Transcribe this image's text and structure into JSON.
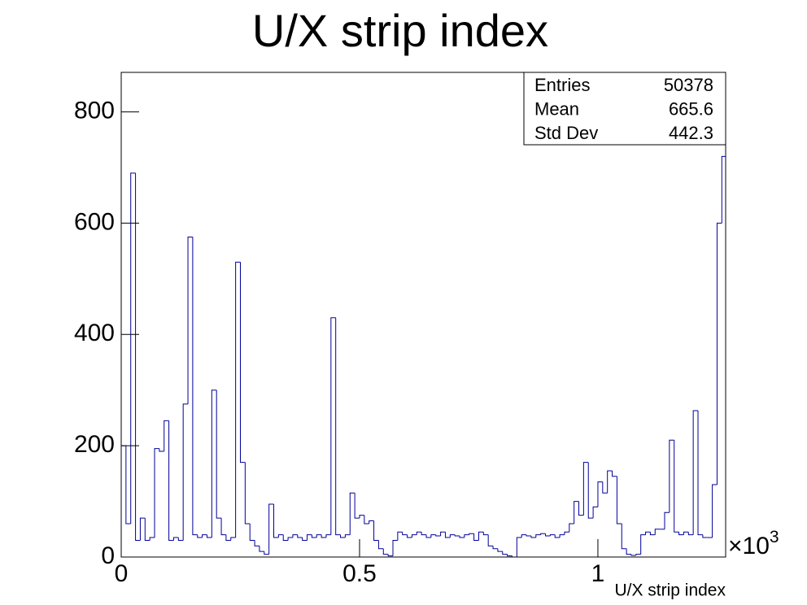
{
  "chart_data": {
    "type": "histogram",
    "title": "U/X strip index",
    "x_label": "U/X strip index",
    "x_multiplier": {
      "base": "×10",
      "exponent": "3"
    },
    "color": "#000099",
    "bins": [
      0,
      10,
      20,
      30,
      40,
      50,
      60,
      70,
      80,
      90,
      100,
      110,
      120,
      130,
      140,
      150,
      160,
      170,
      180,
      190,
      200,
      210,
      220,
      230,
      240,
      250,
      260,
      270,
      280,
      290,
      300,
      310,
      320,
      330,
      340,
      350,
      360,
      370,
      380,
      390,
      400,
      410,
      420,
      430,
      440,
      450,
      460,
      470,
      480,
      490,
      500,
      510,
      520,
      530,
      540,
      550,
      560,
      570,
      580,
      590,
      600,
      610,
      620,
      630,
      640,
      650,
      660,
      670,
      680,
      690,
      700,
      710,
      720,
      730,
      740,
      750,
      760,
      770,
      780,
      790,
      800,
      810,
      820,
      830,
      840,
      850,
      860,
      870,
      880,
      890,
      900,
      910,
      920,
      930,
      940,
      950,
      960,
      970,
      980,
      990,
      1000,
      1010,
      1020,
      1030,
      1040,
      1050,
      1060,
      1070,
      1080,
      1090,
      1100,
      1110,
      1120,
      1130,
      1140,
      1150,
      1160,
      1170,
      1180,
      1190,
      1200,
      1210,
      1220,
      1230,
      1240,
      1250,
      1260,
      1268
    ],
    "values": [
      200,
      60,
      690,
      30,
      70,
      30,
      35,
      195,
      190,
      245,
      30,
      35,
      30,
      275,
      575,
      40,
      35,
      40,
      35,
      300,
      70,
      40,
      30,
      35,
      530,
      170,
      60,
      30,
      20,
      10,
      5,
      95,
      35,
      40,
      30,
      35,
      40,
      35,
      30,
      40,
      35,
      40,
      35,
      40,
      430,
      40,
      35,
      40,
      115,
      70,
      75,
      60,
      65,
      30,
      15,
      5,
      2,
      30,
      45,
      40,
      35,
      40,
      45,
      40,
      35,
      40,
      38,
      45,
      35,
      40,
      38,
      35,
      40,
      42,
      30,
      45,
      40,
      20,
      15,
      10,
      5,
      2,
      0,
      35,
      40,
      38,
      35,
      40,
      42,
      38,
      40,
      35,
      40,
      45,
      60,
      100,
      75,
      170,
      70,
      90,
      135,
      115,
      155,
      145,
      60,
      15,
      5,
      3,
      5,
      40,
      45,
      40,
      50,
      50,
      80,
      210,
      45,
      40,
      45,
      40,
      263,
      40,
      35,
      35,
      130,
      600,
      720
    ],
    "xlim": [
      0,
      1268
    ],
    "ylim": [
      0,
      871
    ],
    "xticks": [
      0,
      {
        "value": 500,
        "label": "0.5"
      },
      {
        "value": 1000,
        "label": "1"
      }
    ],
    "yticks": [
      0,
      200,
      400,
      600,
      800
    ],
    "stats": [
      {
        "label": "Entries",
        "value": 50378
      },
      {
        "label": "Mean",
        "value": 665.6
      },
      {
        "label": "Std Dev",
        "value": 442.3
      }
    ]
  }
}
